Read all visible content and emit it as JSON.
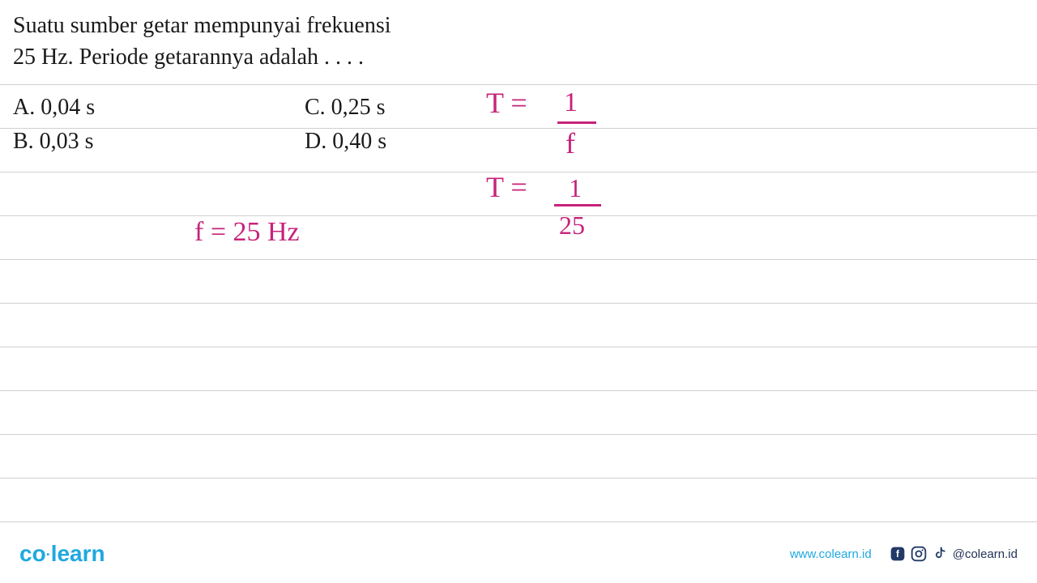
{
  "question": {
    "line1": "Suatu sumber getar mempunyai frekuensi",
    "line2": "25 Hz. Periode getarannya adalah . . . .",
    "text_color": "#1a1a1a",
    "font_size": 28
  },
  "options": {
    "a": "A.   0,04 s",
    "b": "B.   0,03 s",
    "c": "C.   0,25 s",
    "d": "D.   0,40 s",
    "text_color": "#1a1a1a",
    "font_size": 28
  },
  "handwriting": {
    "color": "#c7237a",
    "f_eq": "f = 25 Hz",
    "t1_lhs": "T =",
    "t1_num": "1",
    "t1_den": "f",
    "t2_lhs": "T =",
    "t2_num": "1",
    "t2_den": "25"
  },
  "ruled": {
    "line_color": "#d0d0d0",
    "positions": [
      104,
      158,
      212,
      266,
      320,
      374,
      428,
      482,
      536,
      590,
      644
    ]
  },
  "footer": {
    "logo_co": "co",
    "logo_learn": "learn",
    "logo_color": "#1fa8e0",
    "website": "www.colearn.id",
    "website_color": "#1fa8e0",
    "social_handle": "@colearn.id",
    "icon_color": "#223a66"
  }
}
